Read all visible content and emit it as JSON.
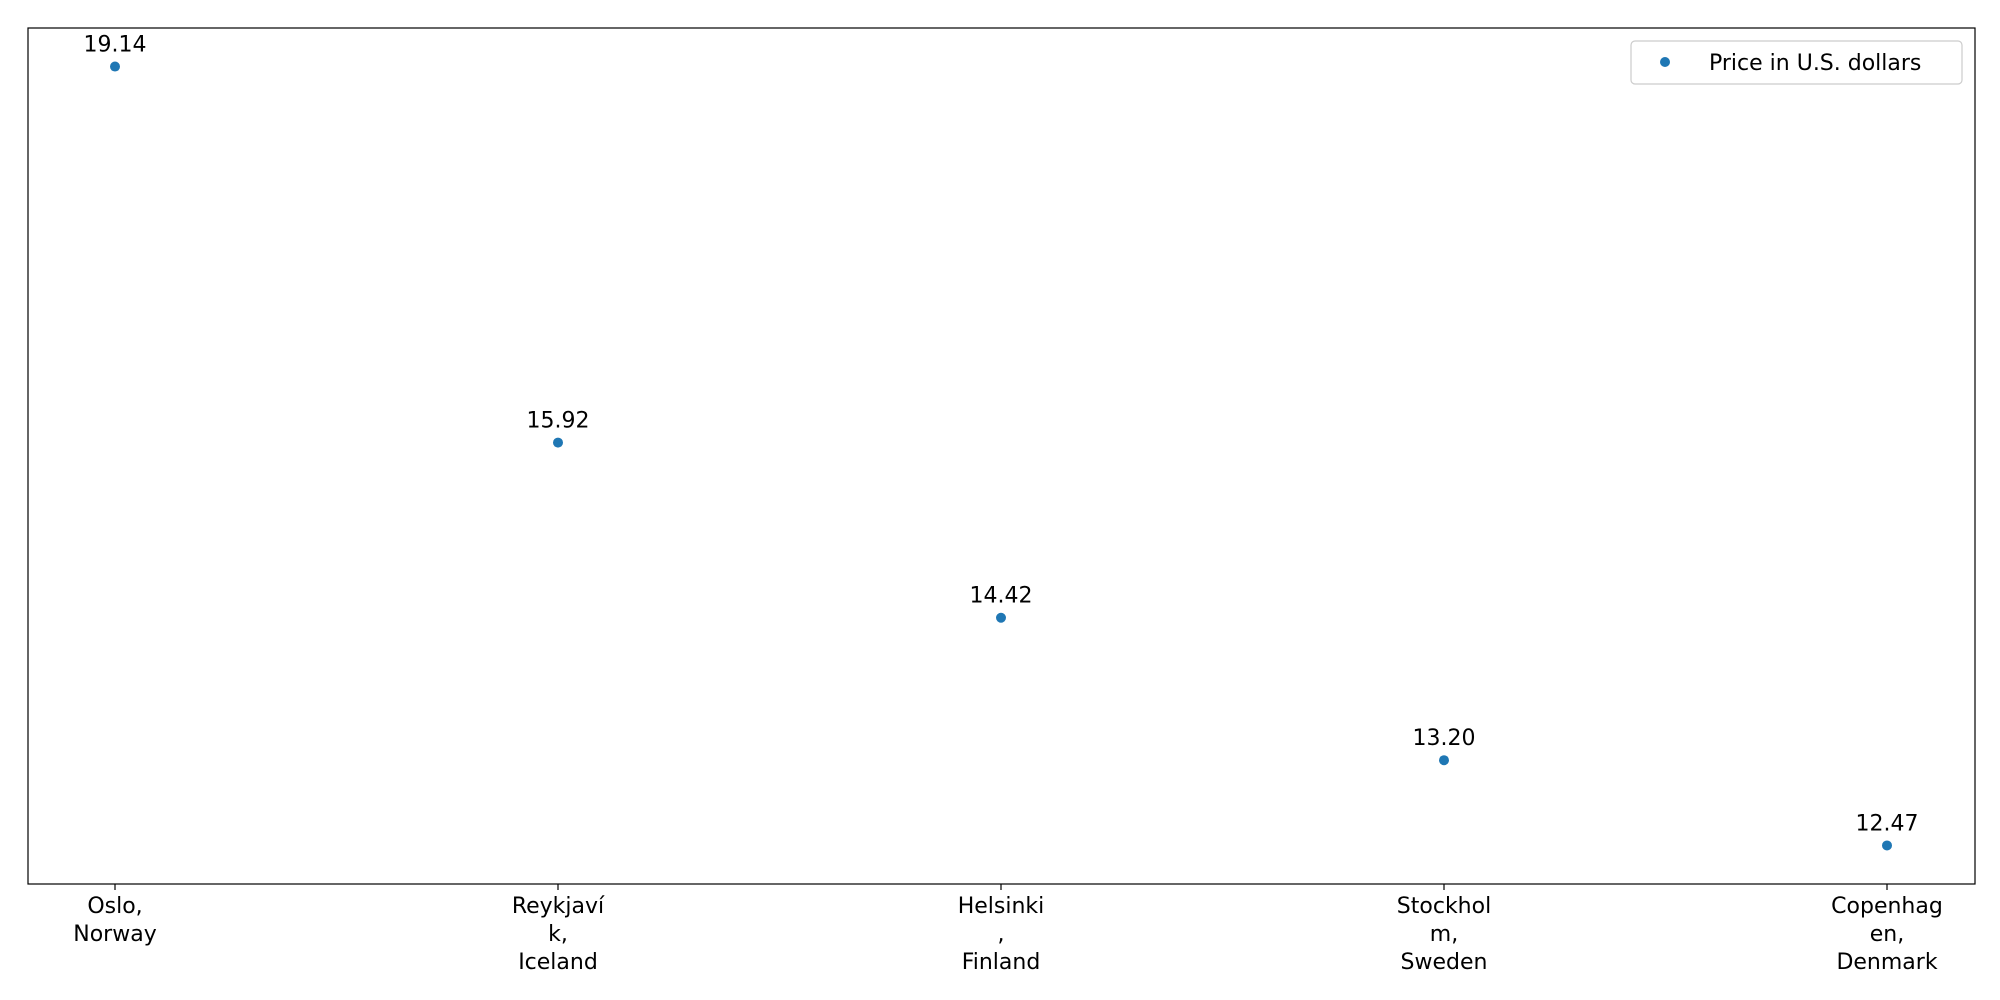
{
  "chart_data": {
    "type": "scatter",
    "categories": [
      [
        "Oslo,",
        "Norway"
      ],
      [
        "Reykjaví",
        "k,",
        "Iceland"
      ],
      [
        "Helsinki",
        ",",
        "Finland"
      ],
      [
        "Stockhol",
        "m,",
        "Sweden"
      ],
      [
        "Copenhag",
        "en,",
        "Denmark"
      ]
    ],
    "series": [
      {
        "name": "Price in U.S. dollars",
        "values": [
          19.14,
          15.92,
          14.42,
          13.2,
          12.47
        ],
        "labels": [
          "19.14",
          "15.92",
          "14.42",
          "13.20",
          "12.47"
        ]
      }
    ],
    "color": "#1f77b4",
    "ylim": [
      12.14,
      19.47
    ],
    "yaxis_visible": false,
    "grid": false,
    "legend_position": "top-right"
  }
}
